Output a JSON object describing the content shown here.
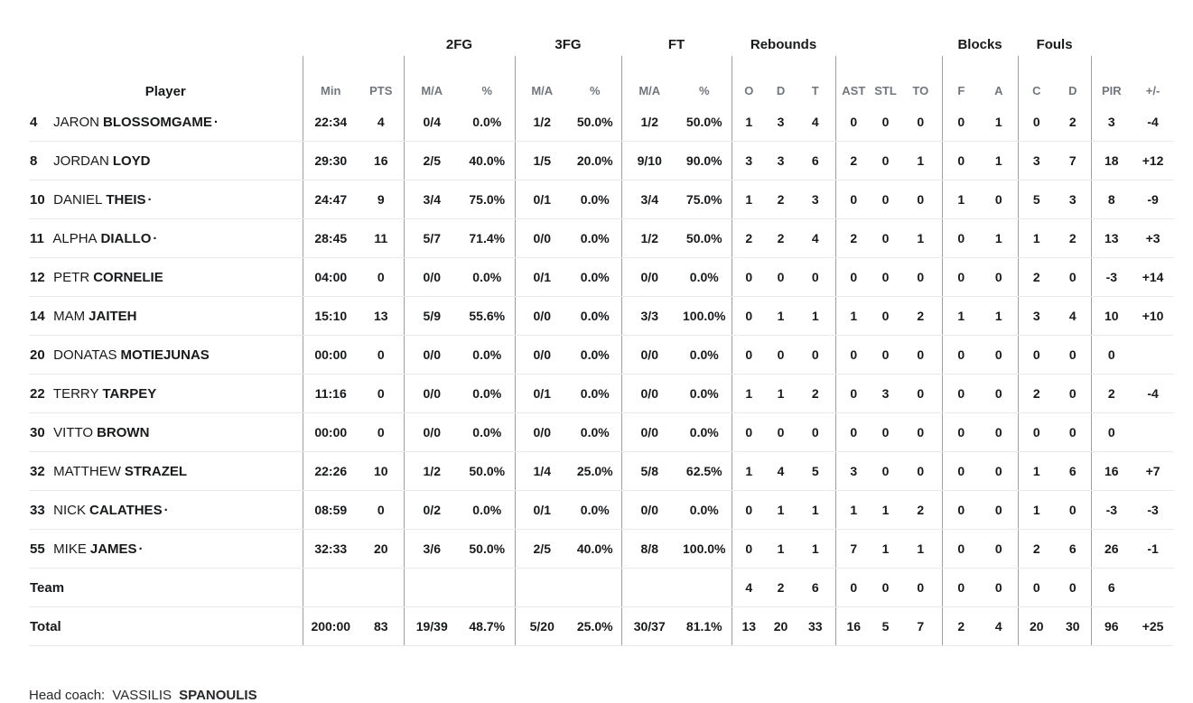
{
  "colors": {
    "text": "#17191b",
    "muted": "#71767c",
    "divider": "#9aa0a5",
    "row_line": "#e8e9ea"
  },
  "table": {
    "starter_marker": "·",
    "group_headers": {
      "fg2": "2FG",
      "fg3": "3FG",
      "ft": "FT",
      "rebounds": "Rebounds",
      "blocks": "Blocks",
      "fouls": "Fouls"
    },
    "columns": {
      "player": "Player",
      "min": "Min",
      "pts": "PTS",
      "ma": "M/A",
      "pct": "%",
      "o": "O",
      "d": "D",
      "t": "T",
      "ast": "AST",
      "stl": "STL",
      "to": "TO",
      "f": "F",
      "a": "A",
      "c": "C",
      "pir": "PIR",
      "plus_minus": "+/-"
    },
    "rows": [
      {
        "number": "4",
        "first": "JARON",
        "last": "BLOSSOMGAME",
        "starter": true,
        "stats": [
          "22:34",
          "4",
          "0/4",
          "0.0%",
          "1/2",
          "50.0%",
          "1/2",
          "50.0%",
          "1",
          "3",
          "4",
          "0",
          "0",
          "0",
          "0",
          "1",
          "0",
          "2",
          "3",
          "-4"
        ]
      },
      {
        "number": "8",
        "first": "JORDAN",
        "last": "LOYD",
        "starter": false,
        "stats": [
          "29:30",
          "16",
          "2/5",
          "40.0%",
          "1/5",
          "20.0%",
          "9/10",
          "90.0%",
          "3",
          "3",
          "6",
          "2",
          "0",
          "1",
          "0",
          "1",
          "3",
          "7",
          "18",
          "+12"
        ]
      },
      {
        "number": "10",
        "first": "DANIEL",
        "last": "THEIS",
        "starter": true,
        "stats": [
          "24:47",
          "9",
          "3/4",
          "75.0%",
          "0/1",
          "0.0%",
          "3/4",
          "75.0%",
          "1",
          "2",
          "3",
          "0",
          "0",
          "0",
          "1",
          "0",
          "5",
          "3",
          "8",
          "-9"
        ]
      },
      {
        "number": "11",
        "first": "ALPHA",
        "last": "DIALLO",
        "starter": true,
        "stats": [
          "28:45",
          "11",
          "5/7",
          "71.4%",
          "0/0",
          "0.0%",
          "1/2",
          "50.0%",
          "2",
          "2",
          "4",
          "2",
          "0",
          "1",
          "0",
          "1",
          "1",
          "2",
          "13",
          "+3"
        ]
      },
      {
        "number": "12",
        "first": "PETR",
        "last": "CORNELIE",
        "starter": false,
        "stats": [
          "04:00",
          "0",
          "0/0",
          "0.0%",
          "0/1",
          "0.0%",
          "0/0",
          "0.0%",
          "0",
          "0",
          "0",
          "0",
          "0",
          "0",
          "0",
          "0",
          "2",
          "0",
          "-3",
          "+14"
        ]
      },
      {
        "number": "14",
        "first": "MAM",
        "last": "JAITEH",
        "starter": false,
        "stats": [
          "15:10",
          "13",
          "5/9",
          "55.6%",
          "0/0",
          "0.0%",
          "3/3",
          "100.0%",
          "0",
          "1",
          "1",
          "1",
          "0",
          "2",
          "1",
          "1",
          "3",
          "4",
          "10",
          "+10"
        ]
      },
      {
        "number": "20",
        "first": "DONATAS",
        "last": "MOTIEJUNAS",
        "starter": false,
        "stats": [
          "00:00",
          "0",
          "0/0",
          "0.0%",
          "0/0",
          "0.0%",
          "0/0",
          "0.0%",
          "0",
          "0",
          "0",
          "0",
          "0",
          "0",
          "0",
          "0",
          "0",
          "0",
          "0",
          ""
        ]
      },
      {
        "number": "22",
        "first": "TERRY",
        "last": "TARPEY",
        "starter": false,
        "stats": [
          "11:16",
          "0",
          "0/0",
          "0.0%",
          "0/1",
          "0.0%",
          "0/0",
          "0.0%",
          "1",
          "1",
          "2",
          "0",
          "3",
          "0",
          "0",
          "0",
          "2",
          "0",
          "2",
          "-4"
        ]
      },
      {
        "number": "30",
        "first": "VITTO",
        "last": "BROWN",
        "starter": false,
        "stats": [
          "00:00",
          "0",
          "0/0",
          "0.0%",
          "0/0",
          "0.0%",
          "0/0",
          "0.0%",
          "0",
          "0",
          "0",
          "0",
          "0",
          "0",
          "0",
          "0",
          "0",
          "0",
          "0",
          ""
        ]
      },
      {
        "number": "32",
        "first": "MATTHEW",
        "last": "STRAZEL",
        "starter": false,
        "stats": [
          "22:26",
          "10",
          "1/2",
          "50.0%",
          "1/4",
          "25.0%",
          "5/8",
          "62.5%",
          "1",
          "4",
          "5",
          "3",
          "0",
          "0",
          "0",
          "0",
          "1",
          "6",
          "16",
          "+7"
        ]
      },
      {
        "number": "33",
        "first": "NICK",
        "last": "CALATHES",
        "starter": true,
        "stats": [
          "08:59",
          "0",
          "0/2",
          "0.0%",
          "0/1",
          "0.0%",
          "0/0",
          "0.0%",
          "0",
          "1",
          "1",
          "1",
          "1",
          "2",
          "0",
          "0",
          "1",
          "0",
          "-3",
          "-3"
        ]
      },
      {
        "number": "55",
        "first": "MIKE",
        "last": "JAMES",
        "starter": true,
        "stats": [
          "32:33",
          "20",
          "3/6",
          "50.0%",
          "2/5",
          "40.0%",
          "8/8",
          "100.0%",
          "0",
          "1",
          "1",
          "7",
          "1",
          "1",
          "0",
          "0",
          "2",
          "6",
          "26",
          "-1"
        ]
      },
      {
        "label": "Team",
        "stats": [
          "",
          "",
          "",
          "",
          "",
          "",
          "",
          "",
          "4",
          "2",
          "6",
          "0",
          "0",
          "0",
          "0",
          "0",
          "0",
          "0",
          "6",
          ""
        ]
      },
      {
        "label": "Total",
        "stats": [
          "200:00",
          "83",
          "19/39",
          "48.7%",
          "5/20",
          "25.0%",
          "30/37",
          "81.1%",
          "13",
          "20",
          "33",
          "16",
          "5",
          "7",
          "2",
          "4",
          "20",
          "30",
          "96",
          "+25"
        ]
      }
    ]
  },
  "footer": {
    "head_coach_label": "Head coach:",
    "coach_first": "VASSILIS",
    "coach_last": "SPANOULIS"
  }
}
